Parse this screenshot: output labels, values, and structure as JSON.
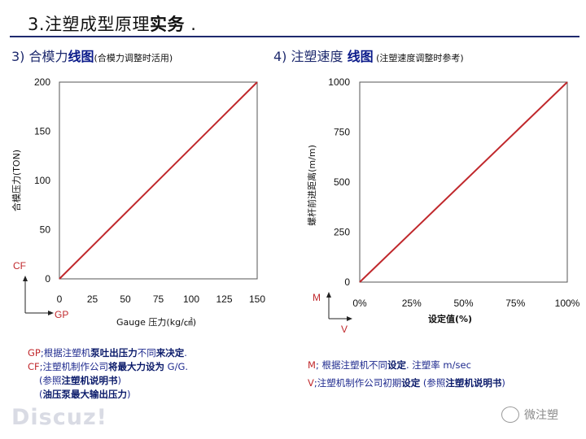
{
  "title": {
    "prefix": "3.注塑成型原理",
    "bold": "实务",
    "suffix": " ."
  },
  "left": {
    "heading_num": "3) 合模力",
    "heading_strong": "线图",
    "heading_small": "(合模力调整时活用)",
    "ylabel": "合模压力(TON)",
    "xlabel": "Gauge 压力(kg/㎠)",
    "cf_label": "CF",
    "gp_label": "GP",
    "notes": [
      {
        "r": "GP",
        "t": ";根据注塑机",
        "k": "泵吐出压力",
        "t2": "不同",
        "k2": "来决定",
        "t3": "."
      },
      {
        "r": "CF",
        "t": ";注塑机制作公司",
        "k": "将最大力设为",
        "t2": " G/G.",
        "k2": "",
        "t3": ""
      },
      {
        "r": "",
        "t": "  (参照",
        "k": "注塑机说明书",
        "t2": ")",
        "k2": "",
        "t3": ""
      },
      {
        "r": "",
        "t": "  (",
        "k": "油压泵最大输出压力",
        "t2": ")",
        "k2": "",
        "t3": ""
      }
    ]
  },
  "right": {
    "heading_num": "4) 注塑速度 ",
    "heading_strong": "线图",
    "heading_small": " (注塑速度调整时参考)",
    "ylabel": "螺杆前进距离(m/m)",
    "xlabel": "设定值(%)",
    "m_label": "M",
    "v_label": "V",
    "notes": [
      {
        "r": "M",
        "t": "; 根据注塑机不同",
        "k": "设定",
        "t2": ". 注塑率 m/sec",
        "k2": "",
        "t3": ""
      },
      {
        "r": "V",
        "t": ";注塑机制作公司初期",
        "k": "设定",
        "t2": " (参照",
        "k2": "注塑机说明书",
        "t3": ")"
      }
    ]
  },
  "chart_data": [
    {
      "type": "line",
      "title": "合模力线图",
      "xlabel": "Gauge 压力(kg/㎠)",
      "ylabel": "合模压力(TON)",
      "x_ticks": [
        "0",
        "25",
        "50",
        "75",
        "100",
        "125",
        "150"
      ],
      "y_ticks": [
        "0",
        "50",
        "100",
        "150",
        "200"
      ],
      "xlim": [
        0,
        150
      ],
      "ylim": [
        0,
        200
      ],
      "series": [
        {
          "x": [
            0,
            150
          ],
          "y": [
            0,
            200
          ]
        }
      ],
      "grid": false,
      "color": "#c0282c"
    },
    {
      "type": "line",
      "title": "注塑速度线图",
      "xlabel": "设定值(%)",
      "ylabel": "螺杆前进距离(m/m)",
      "x_ticks": [
        "0%",
        "25%",
        "50%",
        "75%",
        "100%"
      ],
      "y_ticks": [
        "0",
        "250",
        "500",
        "750",
        "1000"
      ],
      "xlim": [
        0,
        100
      ],
      "ylim": [
        0,
        1000
      ],
      "series": [
        {
          "x": [
            0,
            100
          ],
          "y": [
            0,
            1000
          ]
        }
      ],
      "grid": false,
      "color": "#c0282c"
    }
  ],
  "watermark": {
    "discuz": "Discuz!",
    "wechat": "微注塑"
  }
}
